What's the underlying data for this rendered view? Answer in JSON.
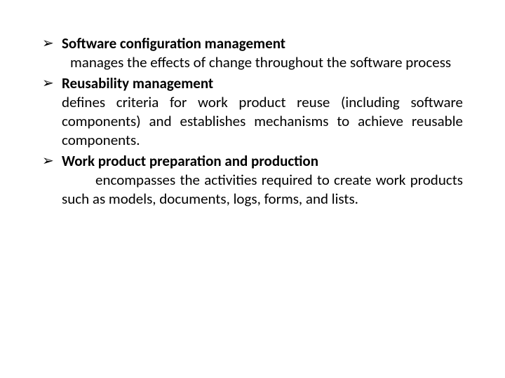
{
  "items": [
    {
      "heading": "Software configuration management",
      "body": "manages the effects of change throughout the software process",
      "indent": "indent-small"
    },
    {
      "heading": "Reusability management",
      "body": "defines criteria for work product reuse (including software components) and establishes mechanisms to achieve reusable components.",
      "indent": ""
    },
    {
      "heading": "Work product preparation and production",
      "body": "encompasses the activities required to create work products such as models, documents, logs, forms, and lists.",
      "indent": "indent-large"
    }
  ],
  "bullet_glyph": "➢",
  "colors": {
    "text": "#000000",
    "background": "#ffffff"
  },
  "typography": {
    "font_family": "Calibri",
    "font_size_pt": 16,
    "heading_weight": 700,
    "body_weight": 400
  }
}
